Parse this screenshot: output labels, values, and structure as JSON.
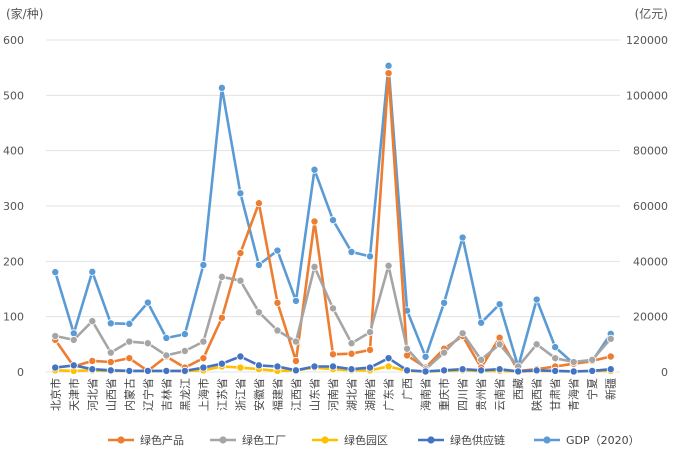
{
  "chart_data": {
    "type": "line",
    "left_unit": "(家/种)",
    "right_unit": "(亿元)",
    "left_ylim": [
      0,
      600
    ],
    "left_ticks": [
      "0",
      "100",
      "200",
      "300",
      "400",
      "500",
      "600"
    ],
    "right_ylim": [
      0,
      120000
    ],
    "right_ticks": [
      "0",
      "20000",
      "40000",
      "60000",
      "80000",
      "100000",
      "120000"
    ],
    "grid": true,
    "legend_position": "bottom",
    "categories": [
      "北京市",
      "天津市",
      "河北省",
      "山西省",
      "内蒙古",
      "辽宁省",
      "吉林省",
      "黑龙江",
      "上海市",
      "江苏省",
      "浙江省",
      "安徽省",
      "福建省",
      "江西省",
      "山东省",
      "河南省",
      "湖北省",
      "湖南省",
      "广东省",
      "广西",
      "海南省",
      "重庆市",
      "四川省",
      "贵州省",
      "云南省",
      "西藏",
      "陕西省",
      "甘肃省",
      "青海省",
      "宁夏",
      "新疆"
    ],
    "series": [
      {
        "name": "绿色产品",
        "axis": "left",
        "color": "#ED7D31",
        "values": [
          58,
          10,
          20,
          18,
          25,
          2,
          28,
          8,
          25,
          98,
          215,
          305,
          125,
          20,
          272,
          32,
          33,
          40,
          540,
          30,
          8,
          42,
          65,
          8,
          62,
          2,
          5,
          10,
          15,
          20,
          28
        ]
      },
      {
        "name": "绿色工厂",
        "axis": "left",
        "color": "#A5A5A5",
        "values": [
          65,
          58,
          92,
          35,
          55,
          52,
          30,
          38,
          55,
          172,
          165,
          108,
          75,
          55,
          190,
          115,
          52,
          72,
          192,
          42,
          5,
          35,
          70,
          22,
          50,
          10,
          50,
          25,
          18,
          22,
          60
        ]
      },
      {
        "name": "绿色园区",
        "axis": "left",
        "color": "#FFC000",
        "values": [
          3,
          2,
          3,
          2,
          2,
          2,
          2,
          2,
          3,
          10,
          8,
          5,
          2,
          3,
          8,
          5,
          3,
          3,
          10,
          2,
          1,
          2,
          3,
          2,
          2,
          1,
          2,
          2,
          1,
          2,
          2
        ]
      },
      {
        "name": "绿色供应链",
        "axis": "left",
        "color": "#4472C4",
        "values": [
          8,
          12,
          5,
          3,
          2,
          2,
          2,
          2,
          8,
          15,
          28,
          12,
          10,
          3,
          10,
          10,
          5,
          8,
          25,
          3,
          1,
          3,
          5,
          3,
          5,
          1,
          3,
          2,
          1,
          2,
          5
        ]
      },
      {
        "name": "GDP（2020）",
        "axis": "right",
        "color": "#5B9BD5",
        "values": [
          36100,
          14000,
          36200,
          17600,
          17400,
          25100,
          12300,
          13700,
          38700,
          102700,
          64600,
          38700,
          43900,
          25700,
          73100,
          54900,
          43400,
          41800,
          110700,
          22200,
          5500,
          25000,
          48600,
          17800,
          24500,
          1900,
          26200,
          9000,
          3000,
          3900,
          13800
        ]
      }
    ]
  }
}
